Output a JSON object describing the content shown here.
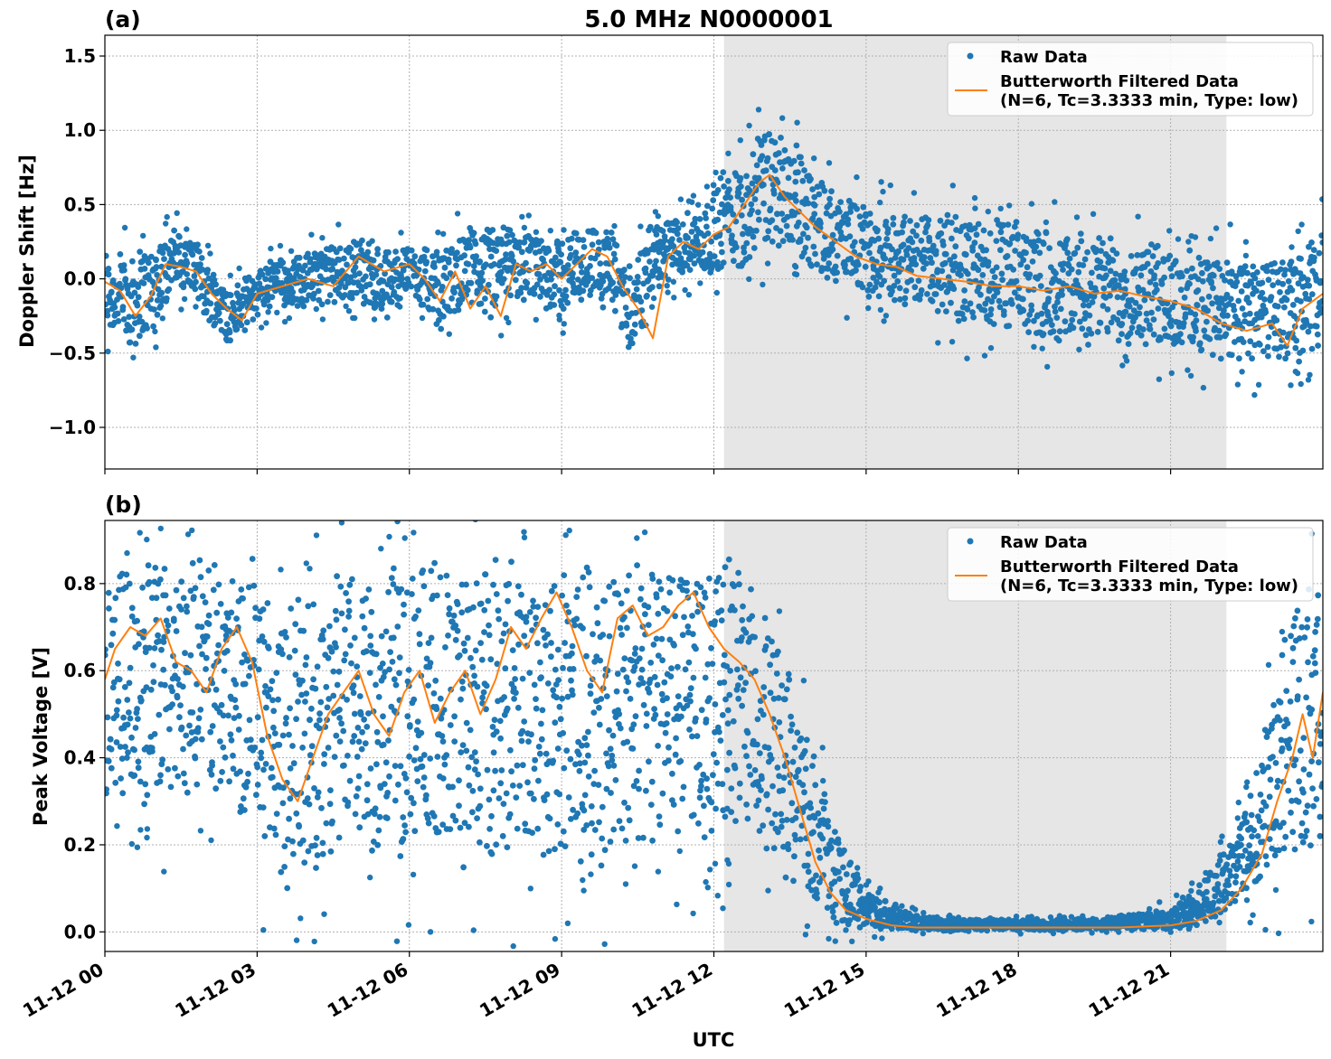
{
  "figure": {
    "title": "5.0 MHz N0000001",
    "xlabel": "UTC"
  },
  "colors": {
    "raw": "#1f77b4",
    "filtered": "#ff7f0e",
    "shade": "#e6e6e6",
    "grid": "#b0b0b0"
  },
  "legend": {
    "raw_label": "Raw Data",
    "filtered_line1": "Butterworth Filtered Data",
    "filtered_line2": "(N=6, Tc=3.3333 min, Type: low)"
  },
  "chart_data": [
    {
      "panel_label": "(a)",
      "type": "scatter",
      "ylabel": "Doppler Shift [Hz]",
      "xlim": [
        0,
        24
      ],
      "ylim": [
        -1.28,
        1.64
      ],
      "yticks": [
        -1.0,
        -0.5,
        0.0,
        0.5,
        1.0,
        1.5
      ],
      "ytick_labels": [
        "−1.0",
        "−0.5",
        "0.0",
        "0.5",
        "1.0",
        "1.5"
      ],
      "xticks_hours": [
        0,
        3,
        6,
        9,
        12,
        15,
        18,
        21
      ],
      "xtick_labels": [
        "11-12 00",
        "11-12 03",
        "11-12 06",
        "11-12 09",
        "11-12 12",
        "11-12 15",
        "11-12 18",
        "11-12 21"
      ],
      "shaded_span_hours": [
        12.2,
        22.1
      ],
      "series": [
        {
          "name": "Raw Data",
          "kind": "scatter-band",
          "hours": [
            0,
            0.5,
            1.0,
            1.3,
            1.7,
            2.0,
            2.5,
            2.9,
            3.3,
            4.0,
            5.0,
            5.5,
            6.0,
            6.6,
            7.1,
            7.6,
            8.0,
            8.6,
            9.0,
            9.5,
            10.0,
            10.4,
            10.8,
            11.3,
            11.8,
            12.2,
            12.6,
            13.0,
            13.4,
            14.0,
            14.5,
            15.0,
            16.0,
            17.0,
            18.0,
            19.0,
            20.0,
            21.0,
            21.5,
            22.0,
            22.5,
            23.0,
            23.5,
            24.0
          ],
          "upper": [
            0.25,
            0.2,
            0.3,
            0.35,
            0.3,
            0.15,
            -0.05,
            0.05,
            0.15,
            0.2,
            0.3,
            0.2,
            0.25,
            0.2,
            0.35,
            0.4,
            0.35,
            0.3,
            0.3,
            0.4,
            0.35,
            0.1,
            0.4,
            0.45,
            0.5,
            0.8,
            0.85,
            1.1,
            1.0,
            0.8,
            0.6,
            0.5,
            0.5,
            0.45,
            0.4,
            0.35,
            0.3,
            0.25,
            0.2,
            0.2,
            0.15,
            0.15,
            0.2,
            0.35
          ],
          "lower": [
            -0.4,
            -0.5,
            -0.35,
            -0.1,
            -0.1,
            -0.3,
            -0.45,
            -0.3,
            -0.2,
            -0.2,
            -0.15,
            -0.3,
            -0.1,
            -0.35,
            -0.2,
            -0.35,
            -0.15,
            -0.2,
            -0.25,
            -0.15,
            -0.25,
            -0.55,
            -0.1,
            0.0,
            0.0,
            0.05,
            0.05,
            0.15,
            0.2,
            0.0,
            -0.1,
            -0.15,
            -0.25,
            -0.35,
            -0.4,
            -0.45,
            -0.45,
            -0.5,
            -0.55,
            -0.55,
            -0.6,
            -0.6,
            -0.6,
            -0.5
          ]
        },
        {
          "name": "Butterworth Filtered Data",
          "kind": "line",
          "hours": [
            0,
            0.3,
            0.6,
            0.9,
            1.2,
            1.5,
            1.8,
            2.1,
            2.4,
            2.7,
            3.0,
            3.5,
            4.0,
            4.5,
            5.0,
            5.5,
            6.0,
            6.3,
            6.6,
            6.9,
            7.2,
            7.5,
            7.8,
            8.1,
            8.4,
            8.7,
            9.0,
            9.3,
            9.6,
            9.9,
            10.2,
            10.5,
            10.8,
            11.1,
            11.4,
            11.7,
            12.0,
            12.3,
            12.6,
            12.9,
            13.1,
            13.4,
            13.7,
            14.0,
            14.4,
            14.8,
            15.2,
            15.6,
            16.0,
            16.5,
            17.0,
            17.5,
            18.0,
            18.5,
            19.0,
            19.5,
            20.0,
            20.5,
            21.0,
            21.5,
            22.0,
            22.5,
            23.0,
            23.3,
            23.6,
            24.0
          ],
          "values": [
            -0.02,
            -0.08,
            -0.25,
            -0.12,
            0.1,
            0.08,
            0.05,
            -0.1,
            -0.2,
            -0.28,
            -0.1,
            -0.05,
            0.0,
            -0.05,
            0.15,
            0.05,
            0.1,
            0.0,
            -0.15,
            0.05,
            -0.2,
            -0.05,
            -0.25,
            0.1,
            0.05,
            0.1,
            0.0,
            0.1,
            0.2,
            0.15,
            -0.05,
            -0.2,
            -0.4,
            0.15,
            0.25,
            0.2,
            0.3,
            0.35,
            0.5,
            0.65,
            0.7,
            0.55,
            0.45,
            0.35,
            0.25,
            0.15,
            0.1,
            0.08,
            0.02,
            0.0,
            -0.02,
            -0.05,
            -0.05,
            -0.08,
            -0.05,
            -0.1,
            -0.08,
            -0.12,
            -0.15,
            -0.2,
            -0.3,
            -0.35,
            -0.3,
            -0.45,
            -0.2,
            -0.1
          ]
        }
      ]
    },
    {
      "panel_label": "(b)",
      "type": "scatter",
      "ylabel": "Peak Voltage [V]",
      "xlim": [
        0,
        24
      ],
      "ylim": [
        -0.045,
        0.945
      ],
      "yticks": [
        0.0,
        0.2,
        0.4,
        0.6,
        0.8
      ],
      "ytick_labels": [
        "0.0",
        "0.2",
        "0.4",
        "0.6",
        "0.8"
      ],
      "xticks_hours": [
        0,
        3,
        6,
        9,
        12,
        15,
        18,
        21
      ],
      "xtick_labels": [
        "11-12 00",
        "11-12 03",
        "11-12 06",
        "11-12 09",
        "11-12 12",
        "11-12 15",
        "11-12 18",
        "11-12 21"
      ],
      "shaded_span_hours": [
        12.2,
        22.1
      ],
      "series": [
        {
          "name": "Raw Data",
          "kind": "scatter-band",
          "hours": [
            0,
            1.0,
            2.0,
            2.9,
            3.2,
            3.6,
            4.2,
            5.0,
            6.0,
            7.0,
            8.0,
            9.0,
            10.0,
            11.0,
            12.0,
            12.5,
            13.0,
            13.5,
            14.0,
            14.5,
            15.0,
            16.0,
            17.0,
            18.0,
            19.0,
            20.0,
            21.0,
            21.5,
            22.0,
            22.5,
            23.0,
            23.5,
            24.0
          ],
          "upper": [
            0.86,
            0.88,
            0.88,
            0.88,
            0.8,
            0.78,
            0.82,
            0.86,
            0.88,
            0.88,
            0.88,
            0.89,
            0.89,
            0.89,
            0.88,
            0.85,
            0.75,
            0.62,
            0.4,
            0.22,
            0.1,
            0.04,
            0.03,
            0.03,
            0.03,
            0.04,
            0.06,
            0.1,
            0.18,
            0.3,
            0.55,
            0.85,
            0.8
          ],
          "lower": [
            0.3,
            0.25,
            0.3,
            0.25,
            0.12,
            0.05,
            0.1,
            0.15,
            0.15,
            0.12,
            0.15,
            0.12,
            0.15,
            0.2,
            0.2,
            0.2,
            0.15,
            0.1,
            0.03,
            0.01,
            0.005,
            0.002,
            0.002,
            0.002,
            0.002,
            0.002,
            0.003,
            0.01,
            0.03,
            0.08,
            0.1,
            0.15,
            0.2
          ]
        },
        {
          "name": "Butterworth Filtered Data",
          "kind": "line",
          "hours": [
            0,
            0.2,
            0.5,
            0.8,
            1.1,
            1.4,
            1.7,
            2.0,
            2.3,
            2.6,
            2.9,
            3.2,
            3.5,
            3.8,
            4.1,
            4.4,
            4.7,
            5.0,
            5.3,
            5.6,
            5.9,
            6.2,
            6.5,
            6.8,
            7.1,
            7.4,
            7.7,
            8.0,
            8.3,
            8.6,
            8.9,
            9.2,
            9.5,
            9.8,
            10.1,
            10.4,
            10.7,
            11.0,
            11.3,
            11.6,
            11.9,
            12.2,
            12.5,
            12.8,
            13.1,
            13.4,
            13.7,
            14.0,
            14.3,
            14.6,
            15.0,
            15.5,
            16.0,
            17.0,
            18.0,
            19.0,
            20.0,
            21.0,
            21.5,
            22.0,
            22.4,
            22.8,
            23.1,
            23.4,
            23.6,
            23.8,
            24.0
          ],
          "values": [
            0.58,
            0.65,
            0.7,
            0.68,
            0.72,
            0.62,
            0.6,
            0.55,
            0.65,
            0.7,
            0.62,
            0.45,
            0.35,
            0.3,
            0.4,
            0.5,
            0.55,
            0.6,
            0.5,
            0.45,
            0.55,
            0.6,
            0.48,
            0.55,
            0.6,
            0.5,
            0.58,
            0.7,
            0.65,
            0.72,
            0.78,
            0.7,
            0.6,
            0.55,
            0.72,
            0.75,
            0.68,
            0.7,
            0.75,
            0.78,
            0.7,
            0.65,
            0.62,
            0.58,
            0.5,
            0.4,
            0.28,
            0.16,
            0.09,
            0.05,
            0.03,
            0.015,
            0.01,
            0.01,
            0.01,
            0.01,
            0.01,
            0.015,
            0.025,
            0.05,
            0.1,
            0.18,
            0.3,
            0.4,
            0.5,
            0.4,
            0.55
          ]
        }
      ]
    }
  ]
}
